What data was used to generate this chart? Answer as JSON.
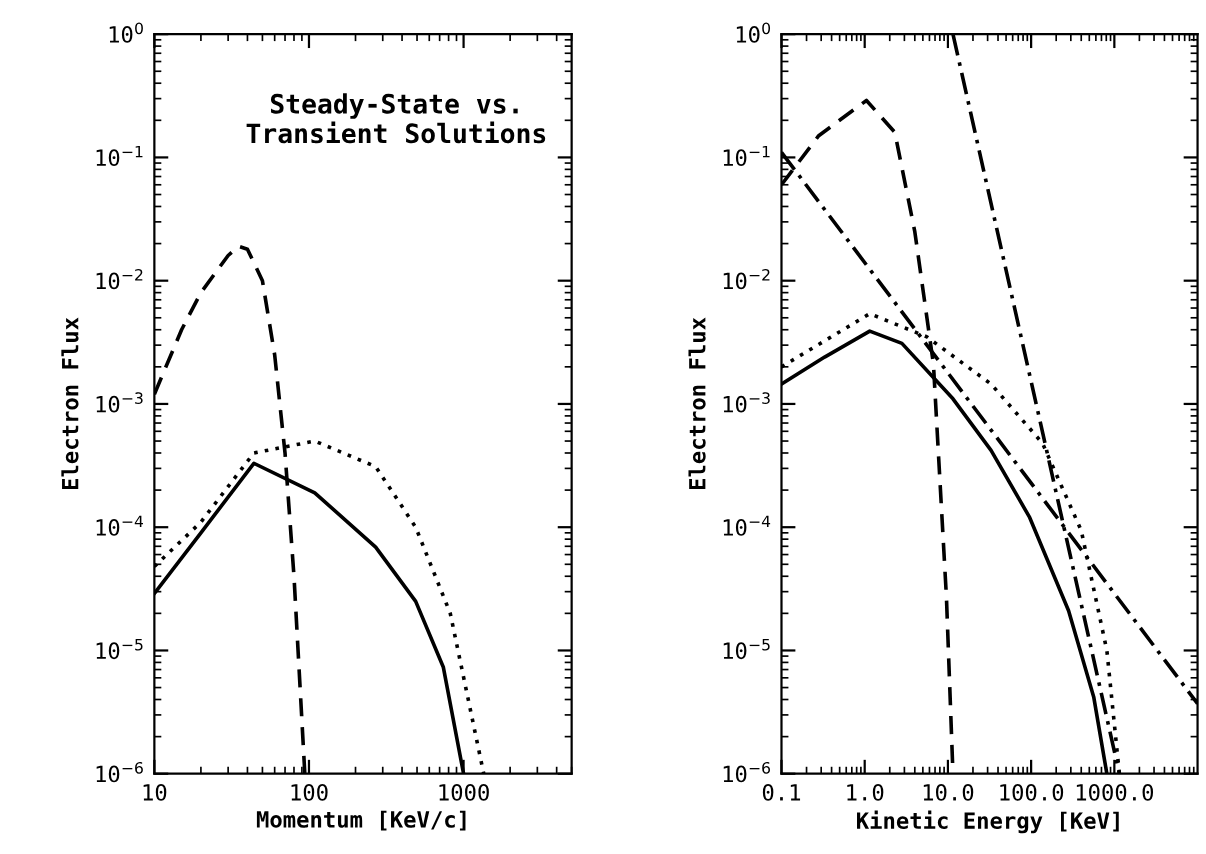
{
  "chart_data": [
    {
      "type": "line",
      "xlabel": "Momentum [KeV/c]",
      "ylabel": "Electron Flux",
      "annotations": [
        "Steady-State vs.\nTransient Solutions"
      ],
      "log": "xy",
      "grid": false,
      "xlim": [
        10,
        5000
      ],
      "xticks": [
        10,
        100,
        1000
      ],
      "ylim": [
        1e-06,
        1
      ],
      "yticks": [
        {
          "value": 1e-06,
          "label": "10$^{−6}$"
        },
        {
          "value": 1e-05,
          "label": "10$^{−5}$"
        },
        {
          "value": 0.0001,
          "label": "10$^{−4}$"
        },
        {
          "value": 0.001,
          "label": "10$^{−3}$"
        },
        {
          "value": 0.01,
          "label": "10$^{−2}$"
        },
        {
          "value": 0.1,
          "label": "10$^{−1}$"
        },
        {
          "value": 1,
          "label": "10$^{0}$"
        }
      ],
      "series": [
        {
          "color": "#000000",
          "line_style": "dashed",
          "x": [
            10,
            15,
            20,
            30,
            35,
            40,
            50,
            60,
            70,
            80,
            94
          ],
          "values": [
            0.0012,
            0.004,
            0.008,
            0.016,
            0.019,
            0.018,
            0.01,
            0.0025,
            0.0004,
            4e-05,
            1e-06
          ]
        },
        {
          "color": "#000000",
          "line_style": "solid",
          "x": [
            10,
            20,
            44,
            109,
            270,
            490,
            740,
            1000
          ],
          "values": [
            2.9e-05,
            9e-05,
            0.00033,
            0.00019,
            6.9e-05,
            2.5e-05,
            7.3e-06,
            1e-06
          ]
        },
        {
          "color": "#000000",
          "line_style": "dotted",
          "x": [
            10,
            20,
            44,
            109,
            270,
            490,
            820,
            1350
          ],
          "values": [
            4.8e-05,
            0.00011,
            0.0004,
            0.0005,
            0.00031,
            0.0001,
            2e-05,
            1e-06
          ]
        }
      ]
    },
    {
      "type": "line",
      "xlabel": "Kinetic Energy [KeV]",
      "ylabel": "Electron Flux",
      "log": "xy",
      "grid": false,
      "xlim": [
        0.1,
        10000
      ],
      "xticks": [
        {
          "value": 0.1,
          "label": "0.1"
        },
        {
          "value": 1,
          "label": "1.0"
        },
        {
          "value": 10,
          "label": "10.0"
        },
        {
          "value": 100,
          "label": "100.0"
        },
        {
          "value": 1000,
          "label": "1000.0"
        }
      ],
      "ylim": [
        1e-06,
        1
      ],
      "yticks": [
        {
          "value": 1e-06,
          "label": "10$^{−6}$"
        },
        {
          "value": 1e-05,
          "label": "10$^{−5}$"
        },
        {
          "value": 0.0001,
          "label": "10$^{−4}$"
        },
        {
          "value": 0.001,
          "label": "10$^{−3}$"
        },
        {
          "value": 0.01,
          "label": "10$^{−2}$"
        },
        {
          "value": 0.1,
          "label": "10$^{−1}$"
        },
        {
          "value": 1,
          "label": "10$^{0}$"
        }
      ],
      "series": [
        {
          "color": "#000000",
          "line_style": "solid",
          "x": [
            0.1,
            0.33,
            1.15,
            2.8,
            11.5,
            33,
            96,
            282,
            565,
            813
          ],
          "values": [
            0.00145,
            0.0024,
            0.0039,
            0.0031,
            0.0011,
            0.00042,
            0.00012,
            2.1e-05,
            4.2e-06,
            1e-06
          ]
        },
        {
          "color": "#000000",
          "line_style": "dotted",
          "x": [
            0.1,
            1.15,
            5.6,
            33,
            137,
            400,
            813,
            1150
          ],
          "values": [
            0.002,
            0.0054,
            0.0035,
            0.00145,
            0.00048,
            9.4e-05,
            1e-05,
            1e-06
          ]
        },
        {
          "color": "#000000",
          "line_style": "dashed",
          "x": [
            0.1,
            0.28,
            1.05,
            2.3,
            4,
            6.7,
            9.6,
            11.5
          ],
          "values": [
            0.06,
            0.15,
            0.29,
            0.16,
            0.025,
            0.0021,
            2.7e-05,
            1e-06
          ]
        },
        {
          "color": "#000000",
          "line_style": "dashdot",
          "x": [
            0.1,
            10000
          ],
          "values": [
            0.11,
            3.7e-06
          ]
        },
        {
          "color": "#000000",
          "line_style": "dashdot",
          "x": [
            11.5,
            1150
          ],
          "values": [
            1,
            1e-06
          ]
        }
      ]
    }
  ]
}
